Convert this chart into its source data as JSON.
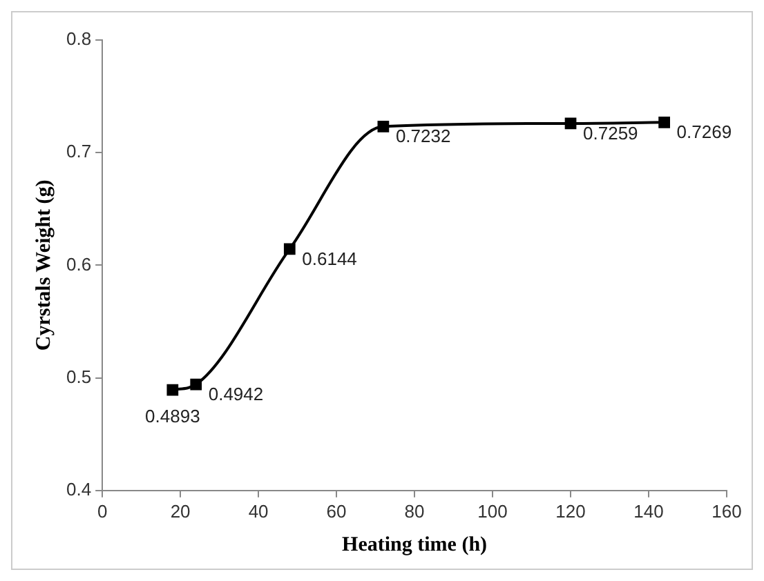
{
  "chart_data": {
    "type": "line",
    "xlabel": "Heating time (h)",
    "ylabel": "Cyrstals Weight (g)",
    "x": [
      18,
      24,
      48,
      72,
      120,
      144
    ],
    "series": [
      {
        "color": "#000000",
        "values": [
          0.4893,
          0.4942,
          0.6144,
          0.7232,
          0.7259,
          0.7269
        ]
      }
    ],
    "xlim": [
      0,
      160
    ],
    "xticks": [
      0,
      20,
      40,
      60,
      80,
      100,
      120,
      140,
      160
    ],
    "ylim": [
      0.4,
      0.8
    ],
    "yticks": [
      0.4,
      0.5,
      0.6,
      0.7,
      0.8
    ],
    "grid": false,
    "legend": false,
    "marker": "square",
    "line_style": "solid",
    "data_labels": true
  }
}
